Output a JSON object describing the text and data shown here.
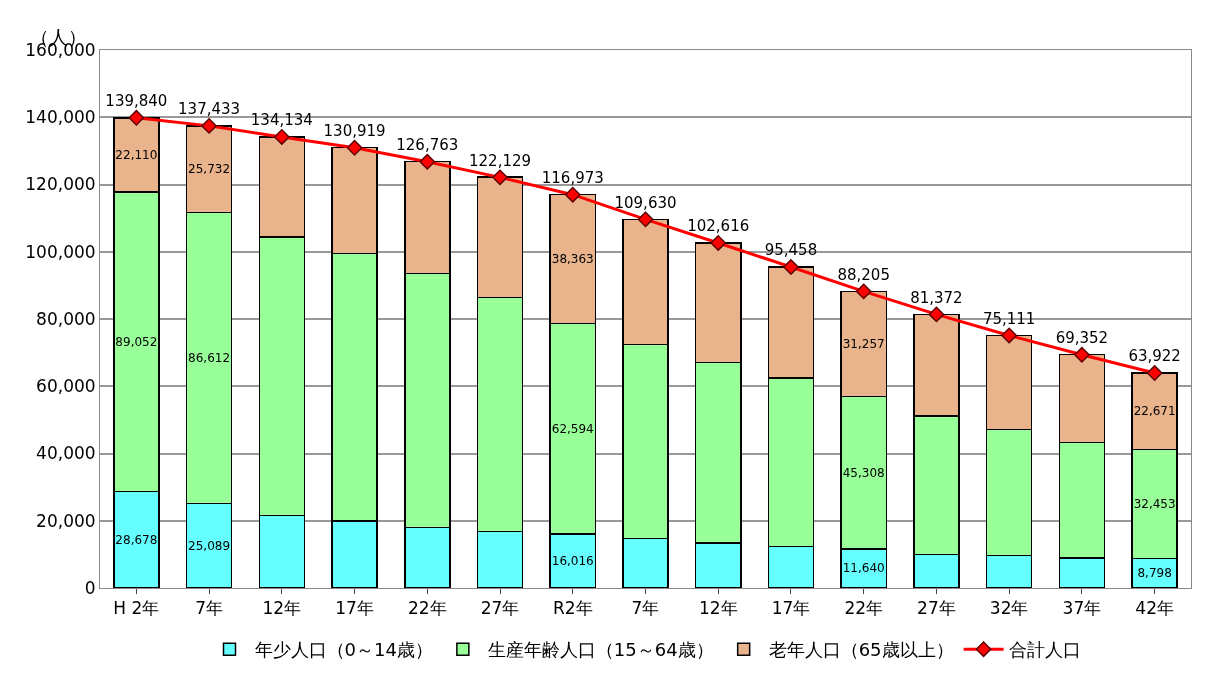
{
  "chart_data": {
    "type": "bar",
    "stacked": true,
    "ylabel": "（人）",
    "categories": [
      "H 2年",
      "7年",
      "12年",
      "17年",
      "22年",
      "27年",
      "R2年",
      "7年",
      "12年",
      "17年",
      "22年",
      "27年",
      "32年",
      "37年",
      "42年"
    ],
    "ylim": [
      0,
      160000
    ],
    "yticks": [
      {
        "value": 0,
        "label": "0"
      },
      {
        "value": 20000,
        "label": "20,000"
      },
      {
        "value": 40000,
        "label": "40,000"
      },
      {
        "value": 60000,
        "label": "60,000"
      },
      {
        "value": 80000,
        "label": "80,000"
      },
      {
        "value": 100000,
        "label": "100,000"
      },
      {
        "value": 120000,
        "label": "120,000"
      },
      {
        "value": 140000,
        "label": "140,000"
      },
      {
        "value": 160000,
        "label": "160,000"
      }
    ],
    "grid": "y",
    "legend": "bottom",
    "series": [
      {
        "name": "年少人口（0～14歳）",
        "color": "#66ffff",
        "values": [
          28678,
          25089,
          21600,
          19900,
          18000,
          16800,
          16016,
          14700,
          13400,
          12400,
          11640,
          10000,
          9600,
          8900,
          8798
        ],
        "value_labels": [
          "28,678",
          "25,089",
          null,
          null,
          null,
          null,
          "16,016",
          null,
          null,
          null,
          "11,640",
          null,
          null,
          null,
          "8,798"
        ]
      },
      {
        "name": "生産年齢人口（15～64歳）",
        "color": "#99ff99",
        "values": [
          89052,
          86612,
          82800,
          79600,
          75600,
          69600,
          62594,
          57700,
          53600,
          50000,
          45308,
          41200,
          37500,
          34400,
          32453
        ],
        "value_labels": [
          "89,052",
          "86,612",
          null,
          null,
          null,
          null,
          "62,594",
          null,
          null,
          null,
          "45,308",
          null,
          null,
          null,
          "32,453"
        ]
      },
      {
        "name": "老年人口（65歳以上）",
        "color": "#e9b48c",
        "values": [
          22110,
          25732,
          29700,
          31500,
          33200,
          35800,
          38363,
          37200,
          35600,
          33100,
          31257,
          30200,
          28000,
          26100,
          22671
        ],
        "value_labels": [
          "22,110",
          "25,732",
          null,
          null,
          null,
          null,
          "38,363",
          null,
          null,
          null,
          "31,257",
          null,
          null,
          null,
          "22,671"
        ]
      },
      {
        "name": "合計人口",
        "type": "line",
        "color": "#ff0000",
        "marker": "diamond",
        "values": [
          139840,
          137433,
          134134,
          130919,
          126763,
          122129,
          116973,
          109630,
          102616,
          95458,
          88205,
          81372,
          75111,
          69352,
          63922
        ],
        "value_labels": [
          "139,840",
          "137,433",
          "134,134",
          "130,919",
          "126,763",
          "122,129",
          "116,973",
          "109,630",
          "102,616",
          "95,458",
          "88,205",
          "81,372",
          "75,111",
          "69,352",
          "63,922"
        ]
      }
    ]
  }
}
